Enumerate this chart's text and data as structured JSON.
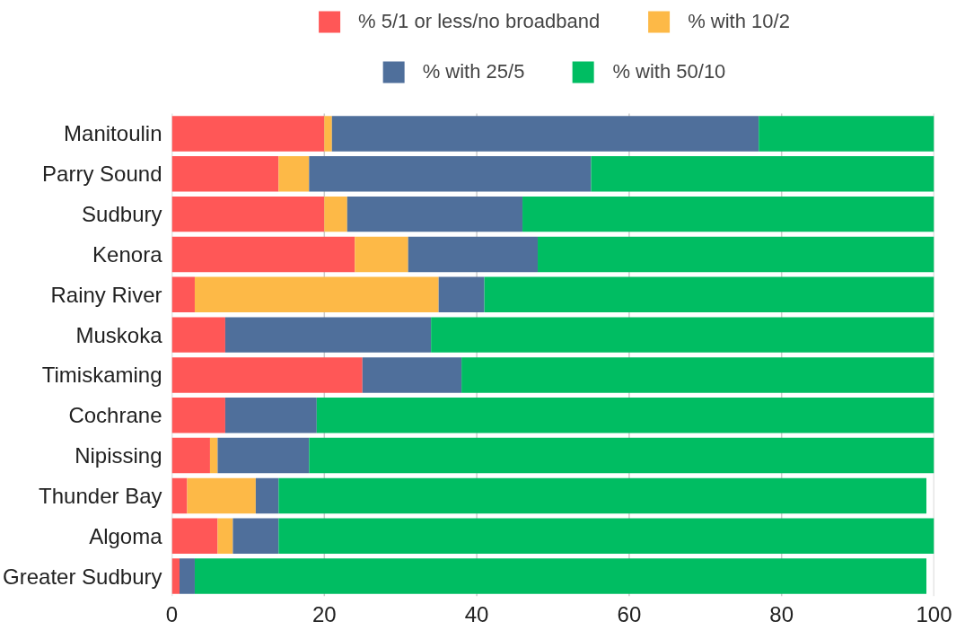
{
  "chart_data": {
    "type": "bar",
    "orientation": "horizontal",
    "stacked": true,
    "categories": [
      "Manitoulin",
      "Parry Sound",
      "Sudbury",
      "Kenora",
      "Rainy River",
      "Muskoka",
      "Timiskaming",
      "Cochrane",
      "Nipissing",
      "Thunder Bay",
      "Algoma",
      "Greater Sudbury"
    ],
    "series": [
      {
        "name": "% 5/1 or less/no broadband",
        "color": "#ff5757",
        "values": [
          20,
          14,
          20,
          24,
          3,
          7,
          25,
          7,
          5,
          2,
          6,
          1
        ]
      },
      {
        "name": "% with 10/2",
        "color": "#fdb947",
        "values": [
          1,
          4,
          3,
          7,
          32,
          0,
          0,
          0,
          1,
          9,
          2,
          0
        ]
      },
      {
        "name": "% with 25/5",
        "color": "#4f6f9b",
        "values": [
          56,
          37,
          23,
          17,
          6,
          27,
          13,
          12,
          12,
          3,
          6,
          2
        ]
      },
      {
        "name": "% with 50/10",
        "color": "#00bd62",
        "values": [
          23,
          45,
          54,
          52,
          59,
          66,
          62,
          81,
          82,
          85,
          86,
          96
        ]
      }
    ],
    "xlim": [
      0,
      100
    ],
    "xticks": [
      0,
      20,
      40,
      60,
      80,
      100
    ],
    "grid": "x",
    "legend": "top"
  }
}
